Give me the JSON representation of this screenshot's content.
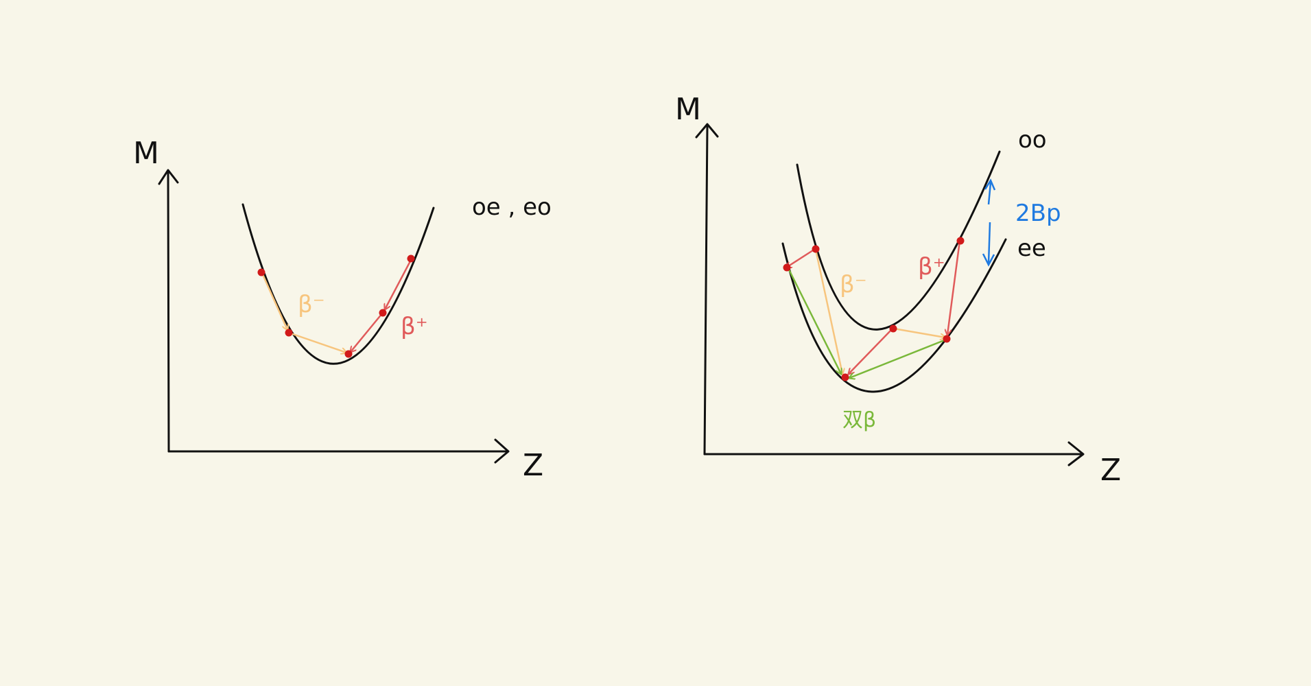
{
  "colors": {
    "background": "#f8f6e9",
    "ink": "#111111",
    "beta_minus": "#f7c57e",
    "beta_plus": "#e05a5a",
    "double_beta": "#7ab83a",
    "pairing": "#1f7ae0",
    "point": "#d11a1a"
  },
  "left_panel": {
    "y_axis_label": "M",
    "x_axis_label": "Z",
    "curve_label": "oe , eo",
    "beta_minus_label": "β⁻",
    "beta_plus_label": "β⁺"
  },
  "right_panel": {
    "y_axis_label": "M",
    "x_axis_label": "Z",
    "upper_curve_label": "oo",
    "lower_curve_label": "ee",
    "pairing_label": "2Bp",
    "beta_minus_label": "β⁻",
    "beta_plus_label": "β⁺",
    "double_beta_label": "双β"
  }
}
